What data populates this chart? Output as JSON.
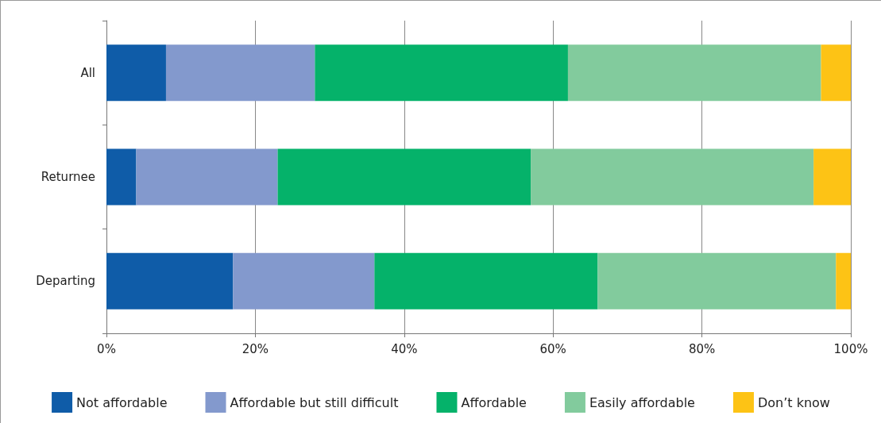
{
  "chart_data": {
    "type": "bar",
    "orientation": "horizontal",
    "stacked": true,
    "categories": [
      "All",
      "Returnee",
      "Departing"
    ],
    "series": [
      {
        "name": "Not affordable",
        "color": "#0f5ca8",
        "values": [
          8,
          4,
          17
        ]
      },
      {
        "name": "Affordable but still difficult",
        "color": "#8399cd",
        "values": [
          20,
          19,
          19
        ]
      },
      {
        "name": "Affordable",
        "color": "#05b26a",
        "values": [
          34,
          34,
          30
        ]
      },
      {
        "name": "Easily affordable",
        "color": "#82cb9d",
        "values": [
          34,
          38,
          32
        ]
      },
      {
        "name": "Don’t know",
        "color": "#fdc315",
        "values": [
          4,
          5,
          2
        ]
      }
    ],
    "xlim": [
      0,
      100
    ],
    "xticks": [
      {
        "value": 0,
        "label": "0%"
      },
      {
        "value": 20,
        "label": "20%"
      },
      {
        "value": 40,
        "label": "40%"
      },
      {
        "value": 60,
        "label": "60%"
      },
      {
        "value": 80,
        "label": "80%"
      },
      {
        "value": 100,
        "label": "100%"
      }
    ],
    "grid": "x",
    "legend": "bottom"
  }
}
